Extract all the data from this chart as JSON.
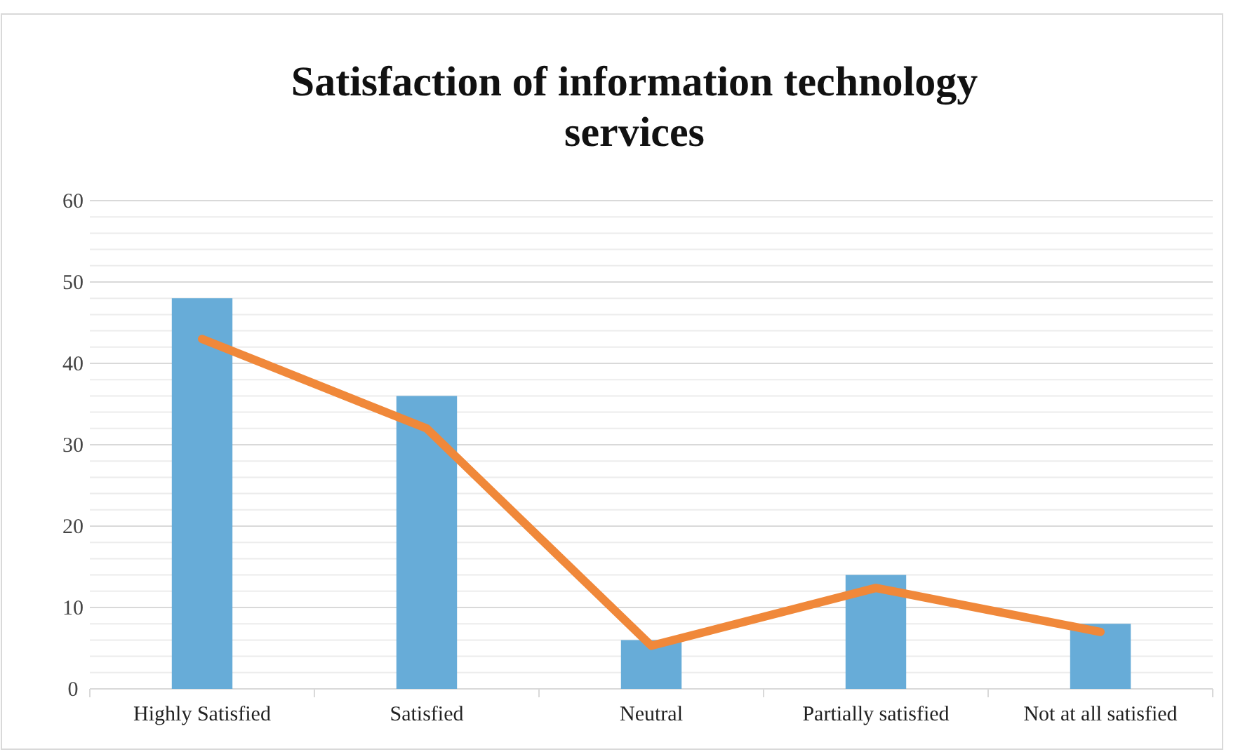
{
  "chart_data": {
    "type": "bar",
    "title": "Satisfaction of information technology services",
    "categories": [
      "Highly Satisfied",
      "Satisfied",
      "Neutral",
      "Partially satisfied",
      "Not at all satisfied"
    ],
    "series": [
      {
        "color": "#67acd8",
        "values": [
          48,
          36,
          6,
          14,
          8
        ]
      },
      {
        "type": "line",
        "color": "#f0883a",
        "values": [
          43,
          32,
          5.3,
          12.4,
          7
        ]
      }
    ],
    "ylim": [
      0,
      60
    ],
    "yticks": [
      0,
      {
        "value": 2,
        "label": null
      },
      {
        "value": 4,
        "label": null
      },
      {
        "value": 6,
        "label": null
      },
      {
        "value": 8,
        "label": null
      },
      10,
      {
        "value": 12,
        "label": null
      },
      {
        "value": 14,
        "label": null
      },
      {
        "value": 16,
        "label": null
      },
      {
        "value": 18,
        "label": null
      },
      20,
      {
        "value": 22,
        "label": null
      },
      {
        "value": 24,
        "label": null
      },
      {
        "value": 26,
        "label": null
      },
      {
        "value": 28,
        "label": null
      },
      30,
      {
        "value": 32,
        "label": null
      },
      {
        "value": 34,
        "label": null
      },
      {
        "value": 36,
        "label": null
      },
      {
        "value": 38,
        "label": null
      },
      40,
      {
        "value": 42,
        "label": null
      },
      {
        "value": 44,
        "label": null
      },
      {
        "value": 46,
        "label": null
      },
      {
        "value": 48,
        "label": null
      },
      50,
      {
        "value": 52,
        "label": null
      },
      {
        "value": 54,
        "label": null
      },
      {
        "value": 56,
        "label": null
      },
      {
        "value": 58,
        "label": null
      },
      60
    ],
    "grid": "y",
    "line_style": "solid",
    "marker": "none"
  }
}
